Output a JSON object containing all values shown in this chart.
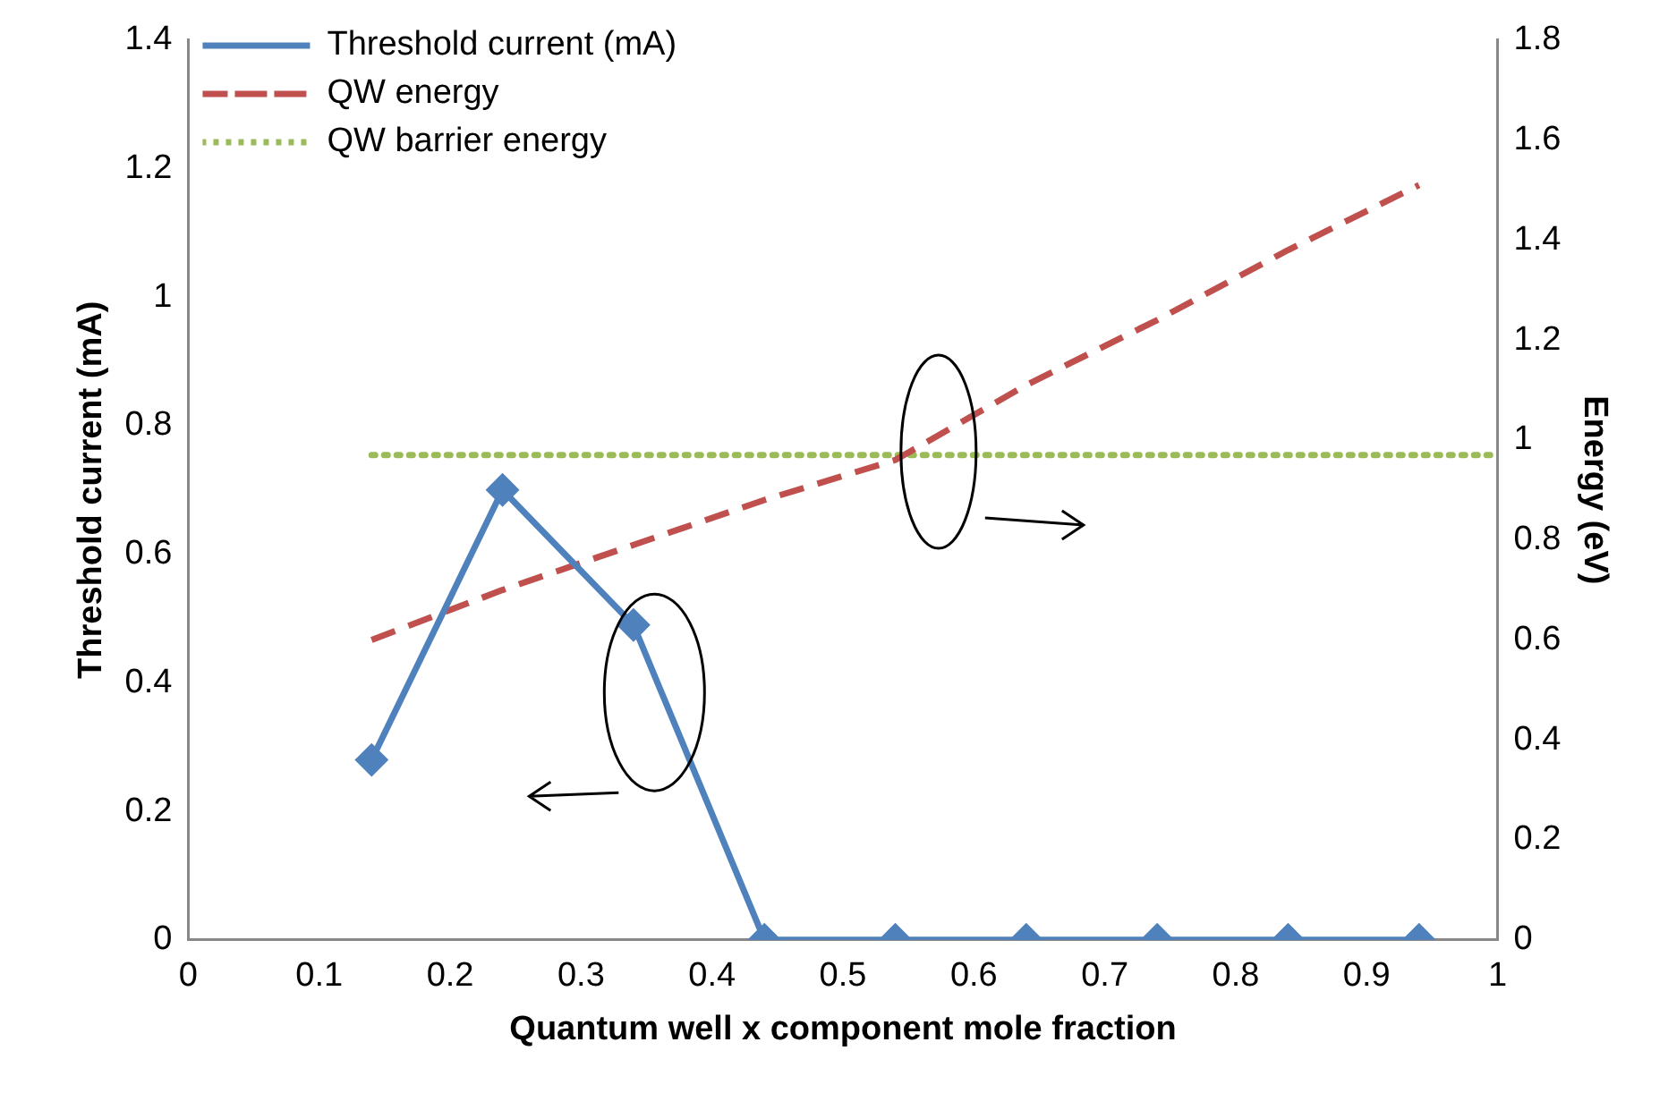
{
  "chart_data": {
    "type": "line",
    "xlabel": "Quantum well x component mole fraction",
    "ylabel": "Threshold current (mA)",
    "y2label": "Energy (eV)",
    "xlim": [
      0,
      1
    ],
    "xticks": [
      0,
      0.1,
      0.2,
      0.3,
      0.4,
      0.5,
      0.6,
      0.7,
      0.8,
      0.9,
      1
    ],
    "ylim": [
      0,
      1.4
    ],
    "yticks": [
      0,
      0.2,
      0.4,
      0.6,
      0.8,
      1,
      1.2,
      1.4
    ],
    "y2lim": [
      0,
      1.8
    ],
    "y2ticks": [
      0,
      0.2,
      0.4,
      0.6,
      0.8,
      1,
      1.2,
      1.4,
      1.6,
      1.8
    ],
    "grid": false,
    "legend": "top left",
    "series": [
      {
        "name": "Threshold current (mA)",
        "color": "#4f81bd",
        "marker": "diamond",
        "line_style": "solid",
        "x": [
          0.14,
          0.24,
          0.34,
          0.44,
          0.54,
          0.64,
          0.74,
          0.84,
          0.94
        ],
        "values": [
          0.28,
          0.7,
          0.49,
          0,
          0,
          0,
          0,
          0,
          0
        ]
      },
      {
        "name": "QW energy",
        "color": "#c0504d",
        "marker": "none",
        "line_style": "dashed",
        "axis": "y2",
        "x": [
          0.14,
          0.24,
          0.34,
          0.44,
          0.54,
          0.64,
          0.74,
          0.84,
          0.94
        ],
        "values": [
          0.6,
          0.7,
          0.79,
          0.88,
          0.96,
          1.11,
          1.24,
          1.38,
          1.51
        ]
      },
      {
        "name": "QW barrier energy",
        "color": "#9bbb59",
        "marker": "none",
        "line_style": "dotted",
        "axis": "y2",
        "x": [
          0.14,
          1
        ],
        "values": [
          0.97,
          0.97
        ]
      }
    ]
  }
}
